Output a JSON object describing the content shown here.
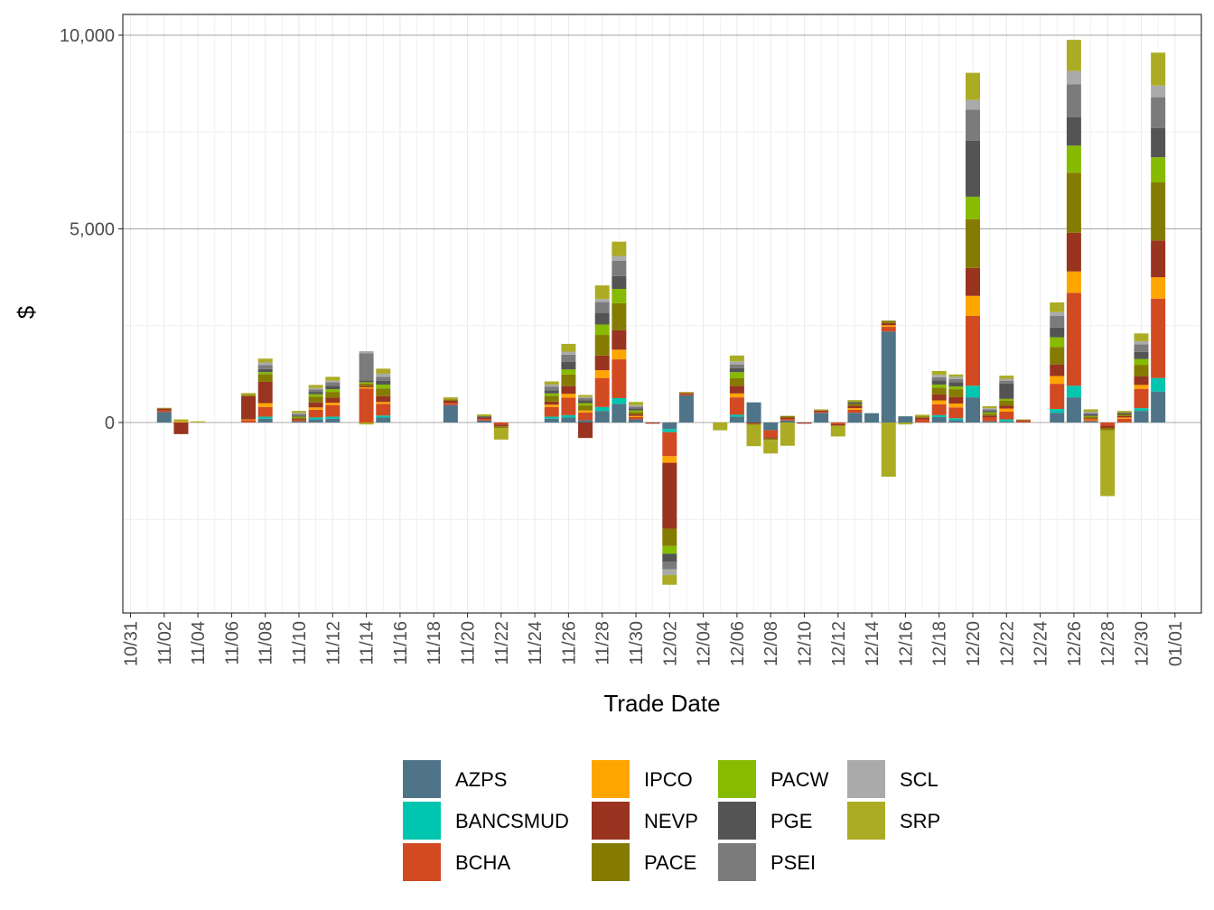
{
  "chart_data": {
    "type": "bar",
    "stacked": true,
    "title": "",
    "xlabel": "Trade Date",
    "ylabel": "$",
    "ylim": [
      -4900,
      10700
    ],
    "y_ticks": [
      0,
      5000,
      10000
    ],
    "y_tick_labels": [
      "0",
      "5,000",
      "10,000"
    ],
    "x_ticks": [
      "10/31",
      "11/02",
      "11/04",
      "11/06",
      "11/08",
      "11/10",
      "11/12",
      "11/14",
      "11/16",
      "11/18",
      "11/20",
      "11/22",
      "11/24",
      "11/26",
      "11/28",
      "11/30",
      "12/02",
      "12/04",
      "12/06",
      "12/08",
      "12/10",
      "12/12",
      "12/14",
      "12/16",
      "12/18",
      "12/20",
      "12/22",
      "12/24",
      "12/26",
      "12/28",
      "12/30",
      "01/01"
    ],
    "grid": true,
    "legend_position": "bottom",
    "series": [
      {
        "name": "AZPS",
        "color": "#4F7387"
      },
      {
        "name": "BANCSMUD",
        "color": "#00C6B0"
      },
      {
        "name": "BCHA",
        "color": "#D24A22"
      },
      {
        "name": "IPCO",
        "color": "#FFA500"
      },
      {
        "name": "NEVP",
        "color": "#98341F"
      },
      {
        "name": "PACE",
        "color": "#857B00"
      },
      {
        "name": "PACW",
        "color": "#86BB00"
      },
      {
        "name": "PGE",
        "color": "#545454"
      },
      {
        "name": "PSEI",
        "color": "#7B7B7B"
      },
      {
        "name": "SCL",
        "color": "#AAAAAA"
      },
      {
        "name": "SRP",
        "color": "#ABAC24"
      }
    ],
    "bars": [
      {
        "date": "11/02",
        "values": {
          "SRP": 20,
          "NEVP": 50,
          "BCHA": 40,
          "AZPS": 270
        }
      },
      {
        "date": "11/03",
        "values": {
          "NEVP": -300,
          "SRP": 60,
          "IPCO": 20
        }
      },
      {
        "date": "11/04",
        "values": {
          "SRP": 30
        }
      },
      {
        "date": "11/07",
        "values": {
          "SRP": 50,
          "PACE": 30,
          "NEVP": 600,
          "BCHA": 60,
          "IPCO": 20
        }
      },
      {
        "date": "11/08",
        "values": {
          "SRP": 100,
          "SCL": 70,
          "PSEI": 100,
          "PGE": 80,
          "PACW": 50,
          "PACE": 200,
          "NEVP": 550,
          "IPCO": 100,
          "BCHA": 250,
          "BANCSMUD": 50,
          "AZPS": 100
        }
      },
      {
        "date": "11/10",
        "values": {
          "SRP": 50,
          "SCL": 30,
          "PSEI": 40,
          "PGE": 30,
          "PACW": 20,
          "PACE": 40,
          "NEVP": 30,
          "BCHA": 30,
          "AZPS": 30
        }
      },
      {
        "date": "11/11",
        "values": {
          "SRP": 80,
          "SCL": 40,
          "PSEI": 60,
          "PGE": 60,
          "PACW": 60,
          "PACE": 150,
          "NEVP": 130,
          "IPCO": 60,
          "BCHA": 200,
          "BANCSMUD": 50,
          "AZPS": 80
        }
      },
      {
        "date": "11/12",
        "values": {
          "SRP": 100,
          "SCL": 40,
          "PSEI": 90,
          "PGE": 90,
          "PACW": 70,
          "PACE": 150,
          "NEVP": 130,
          "IPCO": 60,
          "BCHA": 300,
          "BANCSMUD": 50,
          "AZPS": 100
        }
      },
      {
        "date": "11/14",
        "values": {
          "SRP": -50,
          "SCL": 50,
          "PSEI": 700,
          "PGE": 50,
          "PACW": 30,
          "PACE": 60,
          "NEVP": 40,
          "IPCO": 30,
          "BCHA": 880
        }
      },
      {
        "date": "11/15",
        "values": {
          "SRP": 130,
          "SCL": 80,
          "PSEI": 100,
          "PGE": 100,
          "PACW": 100,
          "PACE": 200,
          "NEVP": 150,
          "IPCO": 50,
          "BCHA": 300,
          "BANCSMUD": 50,
          "AZPS": 130
        }
      },
      {
        "date": "11/19",
        "values": {
          "SRP": 50,
          "PACE": 40,
          "NEVP": 50,
          "BCHA": 60,
          "AZPS": 450
        }
      },
      {
        "date": "11/21",
        "values": {
          "SRP": 50,
          "PGE": 30,
          "NEVP": 40,
          "BCHA": 40,
          "AZPS": 50
        }
      },
      {
        "date": "11/22",
        "values": {
          "SRP": -300,
          "PACE": -40,
          "NEVP": -50,
          "BCHA": -50
        }
      },
      {
        "date": "11/25",
        "values": {
          "SRP": 80,
          "SCL": 50,
          "PSEI": 100,
          "PGE": 80,
          "PACW": 60,
          "PACE": 150,
          "NEVP": 80,
          "IPCO": 60,
          "BCHA": 250,
          "BANCSMUD": 50,
          "AZPS": 100
        }
      },
      {
        "date": "11/26",
        "values": {
          "SRP": 200,
          "SCL": 80,
          "PSEI": 180,
          "PGE": 200,
          "PACW": 130,
          "PACE": 300,
          "NEVP": 200,
          "IPCO": 100,
          "BCHA": 450,
          "BANCSMUD": 60,
          "AZPS": 130
        }
      },
      {
        "date": "11/27",
        "values": {
          "SRP": 50,
          "SCL": 30,
          "PSEI": 60,
          "PGE": 70,
          "PACW": 60,
          "PACE": 130,
          "NEVP": -400,
          "IPCO": 50,
          "BCHA": 200,
          "AZPS": 60
        }
      },
      {
        "date": "11/28",
        "values": {
          "SRP": 350,
          "SCL": 80,
          "PSEI": 280,
          "PGE": 300,
          "PACW": 270,
          "PACE": 530,
          "NEVP": 380,
          "IPCO": 200,
          "BCHA": 750,
          "BANCSMUD": 100,
          "AZPS": 300
        }
      },
      {
        "date": "11/29",
        "values": {
          "SRP": 370,
          "SCL": 120,
          "PSEI": 400,
          "PGE": 330,
          "PACW": 370,
          "PACE": 700,
          "NEVP": 500,
          "IPCO": 250,
          "BCHA": 1000,
          "BANCSMUD": 150,
          "AZPS": 480
        }
      },
      {
        "date": "11/30",
        "values": {
          "SRP": 80,
          "SCL": 40,
          "PSEI": 50,
          "PGE": 50,
          "PACW": 40,
          "PACE": 60,
          "NEVP": 40,
          "IPCO": 30,
          "BCHA": 60,
          "AZPS": 80
        }
      },
      {
        "date": "12/01",
        "values": {
          "NEVP": -30
        }
      },
      {
        "date": "12/02",
        "values": {
          "SRP": -250,
          "SCL": -150,
          "PSEI": -200,
          "PGE": -200,
          "PACW": -200,
          "PACE": -450,
          "NEVP": -1700,
          "IPCO": -170,
          "BCHA": -620,
          "BANCSMUD": -80,
          "AZPS": -170
        }
      },
      {
        "date": "12/03",
        "values": {
          "SRP": 30,
          "NEVP": 30,
          "BCHA": 30,
          "AZPS": 700
        }
      },
      {
        "date": "12/05",
        "values": {
          "SRP": -200
        }
      },
      {
        "date": "12/06",
        "values": {
          "SRP": 150,
          "SCL": 80,
          "PSEI": 100,
          "PGE": 100,
          "PACW": 150,
          "PACE": 200,
          "NEVP": 200,
          "IPCO": 100,
          "BCHA": 450,
          "BANCSMUD": 50,
          "AZPS": 150
        }
      },
      {
        "date": "12/07",
        "values": {
          "SRP": -550,
          "PACE": -30,
          "NEVP": -30,
          "AZPS": 520
        }
      },
      {
        "date": "12/08",
        "values": {
          "SRP": -350,
          "PACE": -40,
          "NEVP": -30,
          "BCHA": -180,
          "AZPS": -200
        }
      },
      {
        "date": "12/09",
        "values": {
          "SRP": -600,
          "PACE": 40,
          "NEVP": 40,
          "BCHA": 40,
          "AZPS": 50
        }
      },
      {
        "date": "12/10",
        "values": {
          "NEVP": -30
        }
      },
      {
        "date": "12/11",
        "values": {
          "SRP": 30,
          "NEVP": 30,
          "BCHA": 30,
          "AZPS": 250
        }
      },
      {
        "date": "12/12",
        "values": {
          "SRP": -280,
          "NEVP": -40,
          "BCHA": -40
        }
      },
      {
        "date": "12/13",
        "values": {
          "SRP": 50,
          "PGE": 50,
          "PACE": 50,
          "NEVP": 60,
          "IPCO": 40,
          "BCHA": 80,
          "AZPS": 250
        }
      },
      {
        "date": "12/14",
        "values": {
          "AZPS": 240
        }
      },
      {
        "date": "12/15",
        "values": {
          "SRP": -1400,
          "PACE": 60,
          "NEVP": 60,
          "IPCO": 40,
          "BCHA": 120,
          "AZPS": 2350
        }
      },
      {
        "date": "12/16",
        "values": {
          "SRP": -50,
          "AZPS": 160
        }
      },
      {
        "date": "12/17",
        "values": {
          "SRP": 40,
          "PACE": 40,
          "NEVP": 40,
          "BCHA": 80
        }
      },
      {
        "date": "12/18",
        "values": {
          "SRP": 100,
          "SCL": 60,
          "PSEI": 80,
          "PGE": 110,
          "PACW": 80,
          "PACE": 170,
          "NEVP": 160,
          "IPCO": 100,
          "BCHA": 280,
          "BANCSMUD": 50,
          "AZPS": 140
        }
      },
      {
        "date": "12/19",
        "values": {
          "SRP": 60,
          "SCL": 60,
          "PSEI": 80,
          "PGE": 110,
          "PACW": 70,
          "PACE": 200,
          "NEVP": 170,
          "IPCO": 100,
          "BCHA": 280,
          "BANCSMUD": 50,
          "AZPS": 60
        }
      },
      {
        "date": "12/20",
        "values": {
          "SRP": 700,
          "SCL": 250,
          "PSEI": 800,
          "PGE": 1450,
          "PACW": 580,
          "PACE": 1260,
          "NEVP": 720,
          "IPCO": 520,
          "BCHA": 1800,
          "BANCSMUD": 300,
          "AZPS": 650
        }
      },
      {
        "date": "12/21",
        "values": {
          "SRP": 50,
          "SCL": 30,
          "PSEI": 40,
          "PGE": 40,
          "PACW": 30,
          "PACE": 50,
          "NEVP": 50,
          "BCHA": 100,
          "AZPS": 30
        }
      },
      {
        "date": "12/22",
        "values": {
          "SRP": 80,
          "SCL": 50,
          "PSEI": 70,
          "PGE": 400,
          "PACW": 50,
          "PACE": 120,
          "NEVP": 80,
          "IPCO": 80,
          "BCHA": 200,
          "BANCSMUD": 50,
          "AZPS": 30
        }
      },
      {
        "date": "12/23",
        "values": {
          "SRP": 20,
          "NEVP": 30,
          "BCHA": 30
        }
      },
      {
        "date": "12/25",
        "values": {
          "SRP": 250,
          "SCL": 100,
          "PSEI": 300,
          "PGE": 250,
          "PACW": 250,
          "PACE": 450,
          "NEVP": 300,
          "IPCO": 200,
          "BCHA": 650,
          "BANCSMUD": 100,
          "AZPS": 250
        }
      },
      {
        "date": "12/26",
        "values": {
          "SRP": 800,
          "SCL": 350,
          "PSEI": 850,
          "PGE": 730,
          "PACW": 700,
          "PACE": 1550,
          "NEVP": 1000,
          "IPCO": 550,
          "BCHA": 2400,
          "BANCSMUD": 300,
          "AZPS": 650
        }
      },
      {
        "date": "12/27",
        "values": {
          "SRP": 60,
          "SCL": 30,
          "PSEI": 40,
          "PGE": 40,
          "PACW": 20,
          "PACE": 40,
          "NEVP": 30,
          "IPCO": 20,
          "BCHA": 30,
          "AZPS": 30
        }
      },
      {
        "date": "12/28",
        "values": {
          "SRP": -1700,
          "PACE": -60,
          "NEVP": -60,
          "BCHA": -80
        }
      },
      {
        "date": "12/29",
        "values": {
          "SRP": 50,
          "PGE": 40,
          "PACE": 40,
          "NEVP": 40,
          "IPCO": 30,
          "BCHA": 100
        }
      },
      {
        "date": "12/30",
        "values": {
          "SRP": 200,
          "SCL": 80,
          "PSEI": 200,
          "PGE": 180,
          "PACW": 150,
          "PACE": 300,
          "NEVP": 220,
          "IPCO": 100,
          "BCHA": 500,
          "BANCSMUD": 70,
          "AZPS": 300
        }
      },
      {
        "date": "12/31",
        "values": {
          "SRP": 850,
          "SCL": 300,
          "PSEI": 800,
          "PGE": 750,
          "PACW": 650,
          "PACE": 1500,
          "NEVP": 950,
          "IPCO": 550,
          "BCHA": 2050,
          "BANCSMUD": 350,
          "AZPS": 800
        }
      }
    ]
  }
}
